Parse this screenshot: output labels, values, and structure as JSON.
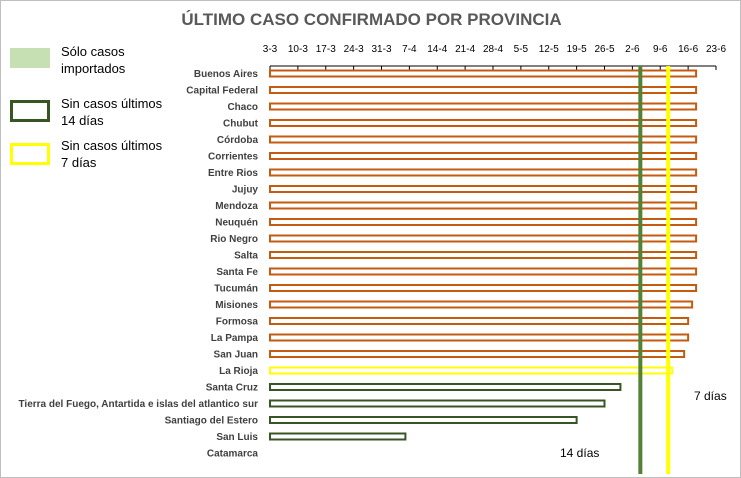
{
  "chart_data": {
    "type": "bar",
    "title": "ÚLTIMO CASO CONFIRMADO POR PROVINCIA",
    "x_tick_labels": [
      "3-3",
      "10-3",
      "17-3",
      "24-3",
      "31-3",
      "7-4",
      "14-4",
      "21-4",
      "28-4",
      "5-5",
      "12-5",
      "19-5",
      "26-5",
      "2-6",
      "9-6",
      "16-6",
      "23-6"
    ],
    "x_tick_days_since_3_3": [
      0,
      7,
      14,
      21,
      28,
      35,
      42,
      49,
      56,
      63,
      70,
      77,
      84,
      91,
      98,
      105,
      112
    ],
    "xlim_days": [
      0,
      112
    ],
    "categories": [
      "Buenos Aires",
      "Capital Federal",
      "Chaco",
      "Chubut",
      "Córdoba",
      "Corrientes",
      "Entre Rios",
      "Jujuy",
      "Mendoza",
      "Neuquén",
      "Rio Negro",
      "Salta",
      "Santa Fe",
      "Tucumán",
      "Misiones",
      "Formosa",
      "La Pampa",
      "San Juan",
      "La Rioja",
      "Santa Cruz",
      "Tierra del Fuego, Antartida e islas del atlantico sur",
      "Santiago del Estero",
      "San Luis",
      "Catamarca"
    ],
    "last_case_dates": [
      "18-6",
      "18-6",
      "18-6",
      "18-6",
      "18-6",
      "18-6",
      "18-6",
      "18-6",
      "18-6",
      "18-6",
      "18-6",
      "18-6",
      "18-6",
      "18-6",
      "17-6",
      "16-6",
      "16-6",
      "15-6",
      "12-6",
      "30-5",
      "26-5",
      "19-5",
      "6-4",
      ""
    ],
    "values_days_since_3_3": [
      107,
      107,
      107,
      107,
      107,
      107,
      107,
      107,
      107,
      107,
      107,
      107,
      107,
      107,
      106,
      105,
      105,
      104,
      101,
      88,
      84,
      77,
      34,
      null
    ],
    "status": [
      "recent",
      "recent",
      "recent",
      "recent",
      "recent",
      "recent",
      "recent",
      "recent",
      "recent",
      "recent",
      "recent",
      "recent",
      "recent",
      "recent",
      "recent",
      "recent",
      "recent",
      "recent",
      "7-days",
      "14-days",
      "14-days",
      "14-days",
      "14-days",
      "none"
    ],
    "reference_lines": [
      {
        "label": "14 días",
        "date": "4-6",
        "day": 93,
        "color": "#548235"
      },
      {
        "label": "7 días",
        "date": "11-6",
        "day": 100,
        "color": "#ffff00"
      }
    ],
    "colors": {
      "recent": "#c55a11",
      "7-days": "#ffff00",
      "14-days": "#375623",
      "imported": "#c6e0b4",
      "axis": "#000000"
    },
    "legend": [
      {
        "label": "Sólo casos importados",
        "style": "fill",
        "color": "#c6e0b4"
      },
      {
        "label": "Sin casos últimos 14 días",
        "style": "outline",
        "color": "#375623"
      },
      {
        "label": "Sin casos últimos 7 días",
        "style": "outline",
        "color": "#ffff00"
      }
    ],
    "legend_position": "left",
    "grid": false
  }
}
